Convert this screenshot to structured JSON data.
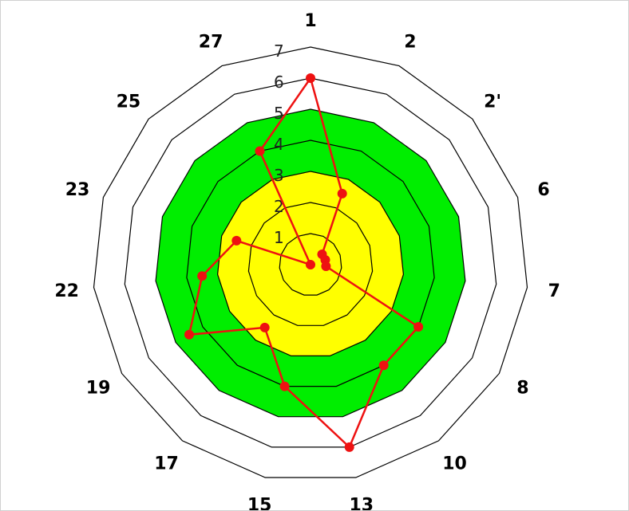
{
  "chart_data": {
    "type": "radar",
    "categories": [
      "1",
      "2",
      "2'",
      "6",
      "7",
      "8",
      "10",
      "13",
      "15",
      "17",
      "19",
      "22",
      "23",
      "25",
      "27"
    ],
    "rmin": 0,
    "rmax": 7,
    "ticks": [
      "1",
      "2",
      "3",
      "4",
      "5",
      "6",
      "7"
    ],
    "bands": [
      {
        "from": 0,
        "to": 3,
        "color": "#ffff00"
      },
      {
        "from": 3,
        "to": 5,
        "color": "#00ee00"
      }
    ],
    "series": [
      {
        "color": "#ee1111",
        "values": [
          6,
          2.5,
          0.5,
          0.5,
          0.5,
          4,
          4,
          6,
          4,
          2.5,
          4.5,
          3.5,
          2.5,
          0,
          4
        ]
      }
    ]
  }
}
